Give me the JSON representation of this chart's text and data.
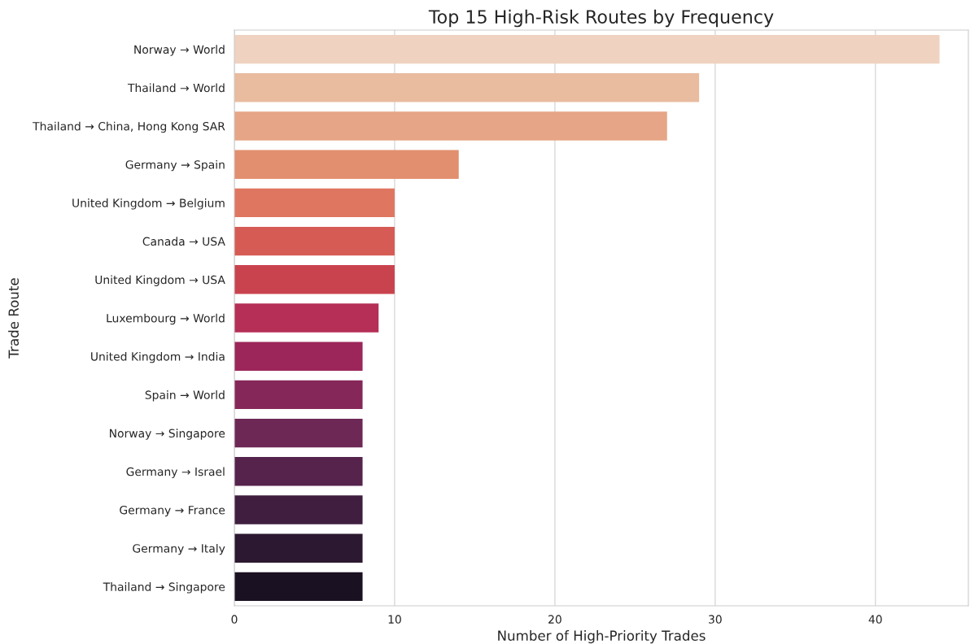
{
  "chart_data": {
    "type": "bar",
    "orientation": "horizontal",
    "title": "Top 15 High-Risk Routes by Frequency",
    "xlabel": "Number of High-Priority Trades",
    "ylabel": "Trade Route",
    "categories": [
      "Norway → World",
      "Thailand → World",
      "Thailand → China, Hong Kong SAR",
      "Germany → Spain",
      "United Kingdom → Belgium",
      "Canada → USA",
      "United Kingdom → USA",
      "Luxembourg → World",
      "United Kingdom → India",
      "Spain → World",
      "Norway → Singapore",
      "Germany → Israel",
      "Germany → France",
      "Germany → Italy",
      "Thailand → Singapore"
    ],
    "values": [
      44,
      29,
      27,
      14,
      10,
      10,
      10,
      9,
      8,
      8,
      8,
      8,
      8,
      8,
      8
    ],
    "colors": [
      "#efd2c0",
      "#e9bb9f",
      "#e6a586",
      "#e28f6f",
      "#df7660",
      "#d65b55",
      "#c9434f",
      "#b52f56",
      "#9c265a",
      "#86275a",
      "#6d2856",
      "#55234c",
      "#3f1e40",
      "#2c1830",
      "#1a1122"
    ],
    "xlim": [
      0,
      45.8
    ],
    "xticks": [
      0,
      10,
      20,
      30,
      40
    ],
    "grid": "x",
    "legend": false
  }
}
